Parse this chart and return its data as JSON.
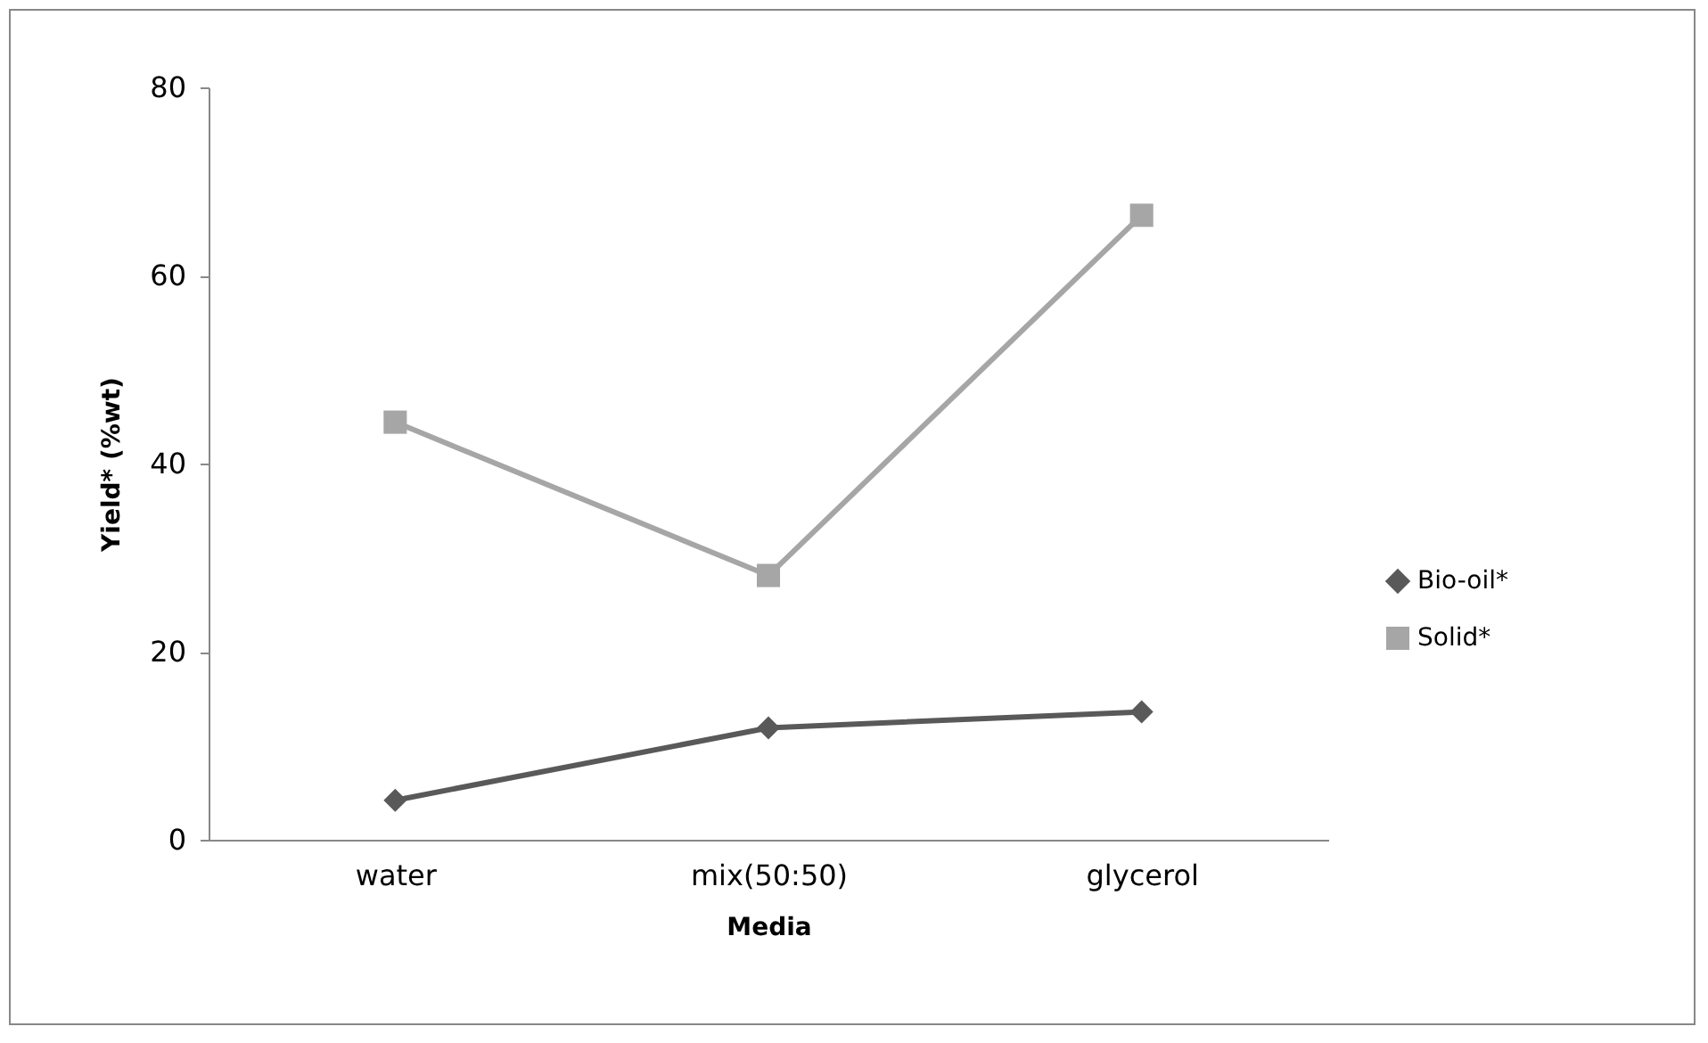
{
  "chart_data": {
    "type": "line",
    "xlabel": "Media",
    "ylabel": "Yield* (%wt)",
    "categories": [
      "water",
      "mix(50:50)",
      "glycerol"
    ],
    "series": [
      {
        "name": "Bio-oil*",
        "color": "#595959",
        "marker": "diamond",
        "values": [
          4.2,
          11.9,
          13.6
        ]
      },
      {
        "name": "Solid*",
        "color": "#a6a6a6",
        "marker": "square",
        "values": [
          44.4,
          28.1,
          66.4
        ]
      }
    ],
    "ylim": [
      0,
      80
    ],
    "yticks": [
      0,
      20,
      40,
      60,
      80
    ],
    "grid": false,
    "legend": "right"
  }
}
